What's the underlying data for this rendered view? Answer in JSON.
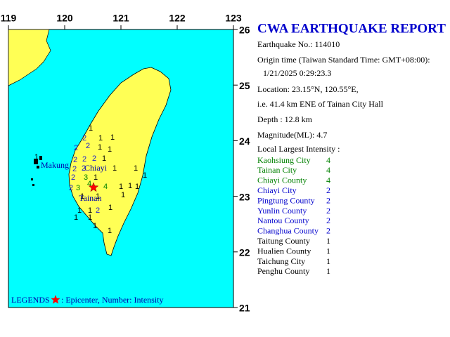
{
  "map": {
    "lonlim": [
      119,
      123
    ],
    "latlim": [
      21,
      26
    ],
    "lon_ticks": [
      119,
      120,
      121,
      122,
      123
    ],
    "lat_ticks": [
      26,
      25,
      24,
      23,
      22,
      21
    ],
    "places": [
      "Makung",
      "Chiayi",
      "Tainan"
    ],
    "stations": [
      1,
      1,
      1,
      2,
      2,
      2,
      1,
      1,
      2,
      2,
      2,
      1,
      2,
      2,
      1,
      1,
      2,
      3,
      1,
      1,
      2,
      3,
      4,
      4,
      1,
      1,
      1,
      1,
      1,
      1,
      1,
      1,
      2,
      1,
      1,
      1,
      1,
      1,
      1
    ],
    "intensity_colors": {
      "1": "#000000",
      "2": "#2222cc",
      "3": "#008000",
      "4": "#008000"
    },
    "legend": {
      "label": "LEGENDS",
      "text": ": Epicenter, Number: Intensity"
    }
  },
  "report": {
    "title": "CWA EARTHQUAKE REPORT",
    "lines": [
      "Earthquake No.: 114010",
      "Origin time (Taiwan Standard Time: GMT+08:00):",
      "1/21/2025  0:29:23.3",
      "Location: 23.15°N, 120.55°E,",
      "i.e. 41.4 km ENE of Tainan City Hall",
      "Depth : 12.8 km",
      "Magnitude(ML): 4.7",
      "Local Largest Intensity :"
    ],
    "intensities": [
      {
        "name": "Kaohsiung City",
        "value": 4,
        "color": "#008000"
      },
      {
        "name": "Tainan City",
        "value": 4,
        "color": "#008000"
      },
      {
        "name": "Chiayi County",
        "value": 4,
        "color": "#008000"
      },
      {
        "name": "Chiayi City",
        "value": 2,
        "color": "#0000cc"
      },
      {
        "name": "Pingtung County",
        "value": 2,
        "color": "#0000cc"
      },
      {
        "name": "Yunlin County",
        "value": 2,
        "color": "#0000cc"
      },
      {
        "name": "Nantou County",
        "value": 2,
        "color": "#0000cc"
      },
      {
        "name": "Changhua County",
        "value": 2,
        "color": "#0000cc"
      },
      {
        "name": "Taitung County",
        "value": 1,
        "color": "#000000"
      },
      {
        "name": "Hualien County",
        "value": 1,
        "color": "#000000"
      },
      {
        "name": "Taichung City",
        "value": 1,
        "color": "#000000"
      },
      {
        "name": "Penghu County",
        "value": 1,
        "color": "#000000"
      }
    ]
  }
}
